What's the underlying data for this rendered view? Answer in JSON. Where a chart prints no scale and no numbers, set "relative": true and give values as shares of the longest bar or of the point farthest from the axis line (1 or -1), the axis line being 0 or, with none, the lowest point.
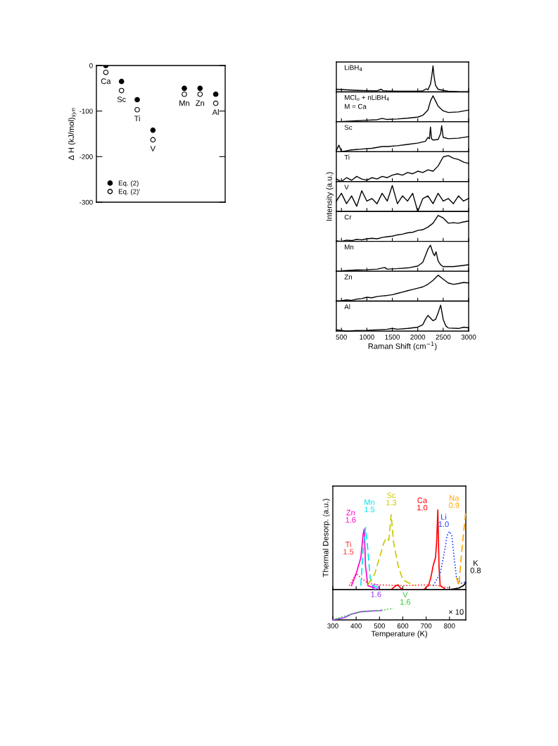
{
  "chart_data": [
    {
      "type": "scatter",
      "ylabel": "Δ H (kJ/mol)$_{syn}$",
      "categories": [
        "Ca",
        "Sc",
        "Ti",
        "V",
        null,
        "Mn",
        "Zn",
        "Al"
      ],
      "marker": "circle",
      "legend": "bottom left",
      "tick_labels": "y",
      "ylim": [
        -300,
        0
      ],
      "yticks": [
        -300,
        -200,
        -100,
        0
      ],
      "series": [
        {
          "name": "Eq. (2)",
          "color": "#000000",
          "values": [
            0,
            -35,
            -75,
            -142,
            null,
            -50,
            -50,
            -63
          ]
        },
        {
          "name": "Eq. (2)'",
          "color": "#000000",
          "values": [
            -15,
            -55,
            -97,
            -163,
            null,
            -63,
            -63,
            -83
          ]
        }
      ]
    },
    {
      "type": "line",
      "relative": true,
      "tick_labels": false,
      "xlim": [
        400,
        3000
      ],
      "xticks": [
        500,
        1000,
        1500,
        2000,
        2500,
        3000
      ],
      "annotations": [
        "LiBH$_{4}$"
      ],
      "x": [
        400,
        600,
        800,
        1000,
        1200,
        1280,
        1320,
        1400,
        1600,
        1800,
        2000,
        2100,
        2170,
        2200,
        2250,
        2275,
        2300,
        2320,
        2350,
        2400,
        2500,
        2600,
        2800,
        3000
      ],
      "series": [
        {
          "color": "#000000",
          "values": [
            0.1,
            0.08,
            0.06,
            0.05,
            0.04,
            0.1,
            0.05,
            0.04,
            0.03,
            0.03,
            0.03,
            0.04,
            0.12,
            0.08,
            0.3,
            0.6,
            1.0,
            0.6,
            0.25,
            0.1,
            0.06,
            0.03,
            0.01,
            0
          ]
        }
      ]
    },
    {
      "type": "line",
      "relative": true,
      "tick_labels": false,
      "xlim": [
        400,
        3000
      ],
      "xticks": [
        500,
        1000,
        1500,
        2000,
        2500,
        3000
      ],
      "annotations": [
        "MCl$_{n}$ + nLiBH$_{4}$",
        "M = Ca"
      ],
      "x": [
        400,
        600,
        800,
        1000,
        1200,
        1300,
        1400,
        1600,
        1800,
        2000,
        2100,
        2200,
        2250,
        2300,
        2350,
        2400,
        2500,
        2600,
        2800,
        3000
      ],
      "series": [
        {
          "color": "#000000",
          "values": [
            0,
            0.02,
            0.04,
            0.06,
            0.08,
            0.13,
            0.09,
            0.11,
            0.14,
            0.18,
            0.25,
            0.45,
            0.8,
            1.0,
            0.8,
            0.6,
            0.42,
            0.36,
            0.38,
            0.45
          ]
        }
      ]
    },
    {
      "type": "line",
      "relative": true,
      "tick_labels": false,
      "xlim": [
        400,
        3000
      ],
      "xticks": [
        500,
        1000,
        1500,
        2000,
        2500,
        3000
      ],
      "annotations": [
        "Sc"
      ],
      "x": [
        400,
        450,
        500,
        700,
        900,
        1100,
        1300,
        1400,
        1600,
        1800,
        2000,
        2150,
        2200,
        2230,
        2250,
        2270,
        2300,
        2400,
        2450,
        2470,
        2500,
        2600,
        2800,
        3000
      ],
      "series": [
        {
          "color": "#000000",
          "values": [
            0.05,
            0.25,
            0,
            0.07,
            0.1,
            0.13,
            0.2,
            0.2,
            0.23,
            0.28,
            0.33,
            0.4,
            0.55,
            0.5,
            0.95,
            0.5,
            0.45,
            0.47,
            0.7,
            1.0,
            0.55,
            0.5,
            0.52,
            0.58
          ]
        }
      ]
    },
    {
      "type": "line",
      "relative": true,
      "tick_labels": false,
      "xlim": [
        400,
        3000
      ],
      "xticks": [
        500,
        1000,
        1500,
        2000,
        2500,
        3000
      ],
      "annotations": [
        "Ti"
      ],
      "x": [
        400,
        500,
        600,
        700,
        800,
        900,
        1000,
        1100,
        1200,
        1300,
        1400,
        1500,
        1600,
        1700,
        1800,
        1900,
        2000,
        2100,
        2200,
        2300,
        2400,
        2500,
        2600,
        2700,
        2800,
        2900,
        3000
      ],
      "series": [
        {
          "color": "#000000",
          "values": [
            0.1,
            0,
            0.15,
            0.05,
            0.2,
            0.1,
            0.05,
            0.15,
            0.1,
            0.2,
            0.15,
            0.25,
            0.3,
            0.25,
            0.35,
            0.3,
            0.4,
            0.35,
            0.45,
            0.4,
            0.6,
            0.95,
            1.0,
            0.9,
            0.85,
            0.75,
            0.7
          ]
        }
      ]
    },
    {
      "type": "line",
      "relative": true,
      "tick_labels": false,
      "xlim": [
        400,
        3000
      ],
      "xticks": [
        500,
        1000,
        1500,
        2000,
        2500,
        3000
      ],
      "annotations": [
        "V"
      ],
      "ylabel": "Intensity (a.u.)",
      "x": [
        400,
        500,
        600,
        700,
        800,
        900,
        1000,
        1100,
        1200,
        1300,
        1400,
        1500,
        1600,
        1700,
        1800,
        1900,
        2000,
        2100,
        2200,
        2300,
        2400,
        2500,
        2600,
        2700,
        2800,
        2900,
        3000
      ],
      "series": [
        {
          "color": "#000000",
          "values": [
            0.4,
            0.7,
            0.3,
            0.6,
            0.2,
            0.8,
            0.4,
            0.5,
            0.3,
            0.7,
            0.4,
            1.0,
            0.3,
            0.6,
            0.4,
            0.7,
            0,
            0.5,
            0.6,
            0.3,
            0.7,
            0.4,
            0.5,
            0.3,
            0.6,
            0.4,
            0.5
          ]
        }
      ]
    },
    {
      "type": "line",
      "relative": true,
      "tick_labels": false,
      "xlim": [
        400,
        3000
      ],
      "xticks": [
        500,
        1000,
        1500,
        2000,
        2500,
        3000
      ],
      "annotations": [
        "Cr"
      ],
      "x": [
        400,
        500,
        600,
        700,
        800,
        900,
        1000,
        1100,
        1200,
        1300,
        1400,
        1500,
        1600,
        1700,
        1800,
        1900,
        2000,
        2100,
        2200,
        2300,
        2400,
        2500,
        2600,
        2700,
        2800,
        2900,
        3000
      ],
      "series": [
        {
          "color": "#000000",
          "values": [
            0.02,
            0,
            0.05,
            0.03,
            0.08,
            0.06,
            0.1,
            0.12,
            0.1,
            0.15,
            0.18,
            0.2,
            0.25,
            0.28,
            0.33,
            0.35,
            0.42,
            0.45,
            0.55,
            0.7,
            1.0,
            0.9,
            0.7,
            0.72,
            0.7,
            0.75,
            0.78
          ]
        }
      ]
    },
    {
      "type": "line",
      "relative": true,
      "tick_labels": false,
      "xlim": [
        400,
        3000
      ],
      "xticks": [
        500,
        1000,
        1500,
        2000,
        2500,
        3000
      ],
      "annotations": [
        "Mn"
      ],
      "x": [
        400,
        600,
        800,
        1000,
        1200,
        1350,
        1400,
        1600,
        1800,
        2000,
        2100,
        2200,
        2250,
        2300,
        2330,
        2360,
        2400,
        2450,
        2500,
        2700,
        3000
      ],
      "series": [
        {
          "color": "#000000",
          "values": [
            0,
            0.03,
            0.05,
            0.06,
            0.08,
            0.15,
            0.08,
            0.1,
            0.13,
            0.2,
            0.35,
            0.85,
            1.0,
            0.7,
            0.6,
            0.75,
            0.4,
            0.25,
            0.18,
            0.18,
            0.25
          ]
        }
      ]
    },
    {
      "type": "line",
      "relative": true,
      "tick_labels": false,
      "xlim": [
        400,
        3000
      ],
      "xticks": [
        500,
        1000,
        1500,
        2000,
        2500,
        3000
      ],
      "annotations": [
        "Zn"
      ],
      "x": [
        400,
        500,
        600,
        700,
        800,
        900,
        1000,
        1100,
        1200,
        1300,
        1400,
        1500,
        1600,
        1700,
        1800,
        1900,
        2000,
        2100,
        2200,
        2300,
        2400,
        2500,
        2600,
        2700,
        2800,
        2900,
        3000
      ],
      "series": [
        {
          "color": "#000000",
          "values": [
            0,
            0.02,
            0.05,
            0.03,
            0.08,
            0.1,
            0.15,
            0.13,
            0.18,
            0.2,
            0.22,
            0.25,
            0.3,
            0.35,
            0.4,
            0.45,
            0.5,
            0.55,
            0.65,
            0.8,
            1.0,
            0.85,
            0.7,
            0.65,
            0.68,
            0.72,
            0.7
          ]
        }
      ]
    },
    {
      "type": "line",
      "relative": true,
      "tick_labels": "x",
      "xlim": [
        400,
        3000
      ],
      "xticks": [
        500,
        1000,
        1500,
        2000,
        2500,
        3000
      ],
      "annotations": [
        "Al"
      ],
      "xlabel": "Raman Shift (cm$^{−1}$)",
      "x": [
        400,
        600,
        800,
        1000,
        1200,
        1400,
        1500,
        1600,
        1800,
        2000,
        2100,
        2150,
        2200,
        2250,
        2300,
        2350,
        2400,
        2450,
        2500,
        2550,
        2600,
        2800,
        2900,
        3000
      ],
      "series": [
        {
          "color": "#000000",
          "values": [
            0.05,
            0,
            0.02,
            0.03,
            0.05,
            0.07,
            0.1,
            0.07,
            0.1,
            0.15,
            0.25,
            0.45,
            0.6,
            0.5,
            0.4,
            0.45,
            0.7,
            1.0,
            0.45,
            0.2,
            0.12,
            0.1,
            0.15,
            0.13
          ]
        }
      ]
    },
    {
      "type": "line",
      "relative": true,
      "tick_labels": false,
      "xlim": [
        300,
        870
      ],
      "xticks": [
        300,
        400,
        500,
        600,
        700,
        800
      ],
      "ylabel": "Thermal Desorp. (a.u.)",
      "series": [
        {
          "name": "Ti\n1.5",
          "color": "#ff3030",
          "line_style": "dotted",
          "x": [
            370,
            390,
            400,
            420,
            450,
            500,
            600,
            700,
            750,
            800
          ],
          "values": [
            0.05,
            0.15,
            0.2,
            0.15,
            0.08,
            0.06,
            0.05,
            0.06,
            0.05,
            0.02
          ]
        },
        {
          "name": "Zn\n1.6",
          "color": "#ff00cc",
          "line_style": "solid",
          "x": [
            380,
            400,
            420,
            430,
            435,
            440,
            450,
            480
          ],
          "values": [
            0.05,
            0.2,
            0.4,
            0.7,
            0.76,
            0.3,
            0.05,
            0.02
          ]
        },
        {
          "name": "Mn\n1.5",
          "color": "#00e5ee",
          "line_style": "dashed",
          "x": [
            420,
            430,
            440,
            450,
            460,
            470,
            500
          ],
          "values": [
            0.05,
            0.5,
            0.78,
            0.5,
            0.15,
            0.05,
            0.02
          ]
        },
        {
          "name": "Sc\n1.3",
          "color": "#c8c800",
          "line_style": "dashed",
          "x": [
            450,
            480,
            500,
            520,
            530,
            540,
            550,
            560,
            580,
            600,
            650
          ],
          "values": [
            0.06,
            0.2,
            0.4,
            0.6,
            0.65,
            0.62,
            0.94,
            0.6,
            0.3,
            0.12,
            0.05
          ]
        },
        {
          "name": "Ca\n1.0",
          "color": "#ff0000",
          "line_style": "solid",
          "x": [
            550,
            570,
            580,
            590,
            600,
            690,
            700,
            710,
            720,
            730,
            740,
            745,
            750,
            755,
            760,
            780
          ],
          "values": [
            0,
            0.05,
            0.06,
            0.02,
            0,
            0,
            0.03,
            0.05,
            0.15,
            0.3,
            0.4,
            0.6,
            1.0,
            0.3,
            0.05,
            0.01
          ]
        },
        {
          "name": "Li\n1.0",
          "color": "#2040ff",
          "line_style": "dotted",
          "x": [
            730,
            760,
            780,
            790,
            800,
            810,
            820,
            830,
            850,
            870
          ],
          "values": [
            0.05,
            0.2,
            0.5,
            0.68,
            0.73,
            0.68,
            0.4,
            0.15,
            0.08,
            0.1
          ]
        },
        {
          "name": "Na\n0.9",
          "color": "#ffa500",
          "line_style": "dashed",
          "x": [
            830,
            840,
            850,
            860,
            870
          ],
          "values": [
            0.15,
            0.05,
            0.4,
            0.7,
            0.98
          ]
        },
        {
          "name": "K\n0.8",
          "color": "#000000",
          "line_style": "solid",
          "x": [
            800,
            840,
            860,
            870
          ],
          "values": [
            0,
            0.02,
            0.05,
            0.09
          ]
        }
      ]
    },
    {
      "type": "line",
      "relative": true,
      "tick_labels": "x",
      "xlim": [
        300,
        870
      ],
      "xticks": [
        300,
        400,
        500,
        600,
        700,
        800
      ],
      "xlabel": "Temperature (K)",
      "annotations": [
        "× 10"
      ],
      "series": [
        {
          "name": "Cr\n1.6",
          "color": "#9933ff",
          "line_style": "solid",
          "x": [
            300,
            350,
            380,
            400,
            420,
            450,
            500,
            510
          ],
          "values": [
            0,
            0.2,
            0.5,
            0.6,
            0.7,
            0.75,
            0.8,
            0.82
          ]
        },
        {
          "name": "V\n1.6",
          "color": "#33cc33",
          "line_style": "dotted",
          "x": [
            300,
            380,
            400,
            420,
            500,
            520,
            560
          ],
          "values": [
            0.02,
            0.5,
            0.6,
            0.7,
            0.8,
            0.85,
            1.0
          ]
        }
      ]
    }
  ]
}
